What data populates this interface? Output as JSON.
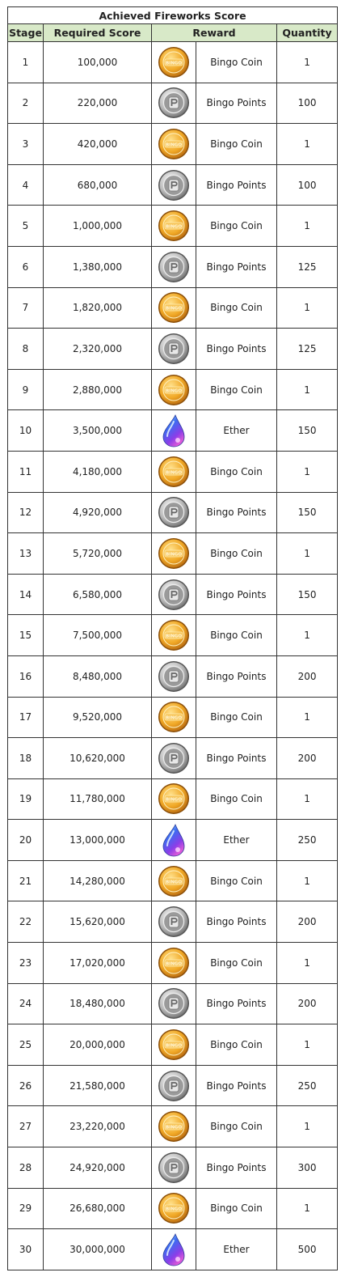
{
  "title": "Achieved Fireworks Score",
  "columns": {
    "stage": "Stage",
    "score": "Required Score",
    "reward": "Reward",
    "quantity": "Quantity"
  },
  "colors": {
    "header_bg": "#d8e9c8",
    "border": "#333333",
    "coin_gold": "#e8a020",
    "points_silver": "#a8a8a8",
    "ether_blue": "#4a6cf0"
  },
  "icon_names": {
    "Bingo Coin": "bingo-coin-icon",
    "Bingo Points": "bingo-points-icon",
    "Ether": "ether-icon"
  },
  "icon_coin_text": "BINGO",
  "rows": [
    {
      "stage": "1",
      "score": "100,000",
      "reward": "Bingo Coin",
      "quantity": "1"
    },
    {
      "stage": "2",
      "score": "220,000",
      "reward": "Bingo Points",
      "quantity": "100"
    },
    {
      "stage": "3",
      "score": "420,000",
      "reward": "Bingo Coin",
      "quantity": "1"
    },
    {
      "stage": "4",
      "score": "680,000",
      "reward": "Bingo Points",
      "quantity": "100"
    },
    {
      "stage": "5",
      "score": "1,000,000",
      "reward": "Bingo Coin",
      "quantity": "1"
    },
    {
      "stage": "6",
      "score": "1,380,000",
      "reward": "Bingo Points",
      "quantity": "125"
    },
    {
      "stage": "7",
      "score": "1,820,000",
      "reward": "Bingo Coin",
      "quantity": "1"
    },
    {
      "stage": "8",
      "score": "2,320,000",
      "reward": "Bingo Points",
      "quantity": "125"
    },
    {
      "stage": "9",
      "score": "2,880,000",
      "reward": "Bingo Coin",
      "quantity": "1"
    },
    {
      "stage": "10",
      "score": "3,500,000",
      "reward": "Ether",
      "quantity": "150"
    },
    {
      "stage": "11",
      "score": "4,180,000",
      "reward": "Bingo Coin",
      "quantity": "1"
    },
    {
      "stage": "12",
      "score": "4,920,000",
      "reward": "Bingo Points",
      "quantity": "150"
    },
    {
      "stage": "13",
      "score": "5,720,000",
      "reward": "Bingo Coin",
      "quantity": "1"
    },
    {
      "stage": "14",
      "score": "6,580,000",
      "reward": "Bingo Points",
      "quantity": "150"
    },
    {
      "stage": "15",
      "score": "7,500,000",
      "reward": "Bingo Coin",
      "quantity": "1"
    },
    {
      "stage": "16",
      "score": "8,480,000",
      "reward": "Bingo Points",
      "quantity": "200"
    },
    {
      "stage": "17",
      "score": "9,520,000",
      "reward": "Bingo Coin",
      "quantity": "1"
    },
    {
      "stage": "18",
      "score": "10,620,000",
      "reward": "Bingo Points",
      "quantity": "200"
    },
    {
      "stage": "19",
      "score": "11,780,000",
      "reward": "Bingo Coin",
      "quantity": "1"
    },
    {
      "stage": "20",
      "score": "13,000,000",
      "reward": "Ether",
      "quantity": "250"
    },
    {
      "stage": "21",
      "score": "14,280,000",
      "reward": "Bingo Coin",
      "quantity": "1"
    },
    {
      "stage": "22",
      "score": "15,620,000",
      "reward": "Bingo Points",
      "quantity": "200"
    },
    {
      "stage": "23",
      "score": "17,020,000",
      "reward": "Bingo Coin",
      "quantity": "1"
    },
    {
      "stage": "24",
      "score": "18,480,000",
      "reward": "Bingo Points",
      "quantity": "200"
    },
    {
      "stage": "25",
      "score": "20,000,000",
      "reward": "Bingo Coin",
      "quantity": "1"
    },
    {
      "stage": "26",
      "score": "21,580,000",
      "reward": "Bingo Points",
      "quantity": "250"
    },
    {
      "stage": "27",
      "score": "23,220,000",
      "reward": "Bingo Coin",
      "quantity": "1"
    },
    {
      "stage": "28",
      "score": "24,920,000",
      "reward": "Bingo Points",
      "quantity": "300"
    },
    {
      "stage": "29",
      "score": "26,680,000",
      "reward": "Bingo Coin",
      "quantity": "1"
    },
    {
      "stage": "30",
      "score": "30,000,000",
      "reward": "Ether",
      "quantity": "500"
    }
  ]
}
